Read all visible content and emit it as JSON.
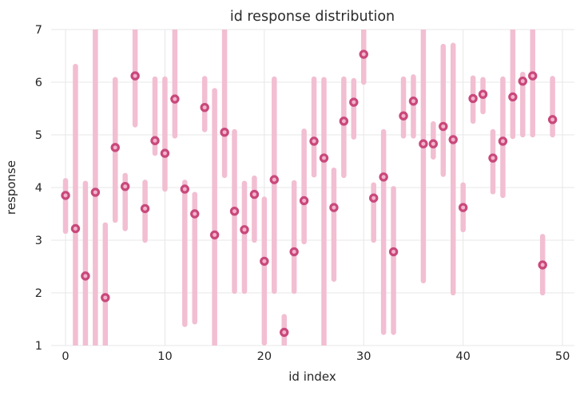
{
  "style": {
    "background": "#ffffff",
    "grid_color": "#e7e7ea",
    "text_color": "#262626",
    "title_color": "#2b2b2b",
    "marker_edge_color": "#c9487b",
    "marker_face_color": "#f2b3ca",
    "error_bar_color": "#f2bed2"
  },
  "chart_data": {
    "type": "scatter",
    "title": "id response distribution",
    "xlabel": "id index",
    "ylabel": "response",
    "xlim": [
      -1.45,
      51.2
    ],
    "ylim": [
      1,
      7
    ],
    "xticks": [
      0,
      10,
      20,
      30,
      40,
      50
    ],
    "yticks": [
      1,
      2,
      3,
      4,
      5,
      6,
      7
    ],
    "grid": true,
    "legend": false,
    "series": [
      {
        "name": "response",
        "marker": "ring",
        "has_error_bars": true,
        "x": [
          0,
          1,
          2,
          3,
          4,
          5,
          6,
          7,
          8,
          9,
          10,
          11,
          12,
          13,
          14,
          15,
          16,
          17,
          18,
          19,
          20,
          21,
          22,
          23,
          24,
          25,
          26,
          27,
          28,
          29,
          30,
          31,
          32,
          33,
          34,
          35,
          36,
          37,
          38,
          39,
          40,
          41,
          42,
          43,
          44,
          45,
          46,
          47,
          48,
          49
        ],
        "y": [
          3.85,
          3.22,
          2.32,
          3.91,
          1.91,
          4.76,
          4.02,
          6.12,
          3.6,
          4.89,
          4.65,
          5.68,
          3.97,
          3.5,
          5.52,
          3.1,
          5.05,
          3.55,
          3.2,
          3.87,
          2.6,
          4.15,
          1.25,
          2.78,
          3.75,
          4.88,
          4.56,
          3.62,
          5.26,
          5.62,
          6.53,
          3.8,
          4.2,
          2.78,
          5.36,
          5.64,
          4.83,
          4.83,
          5.16,
          4.91,
          3.62,
          5.69,
          5.77,
          4.56,
          4.88,
          5.72,
          6.02,
          6.12,
          2.53,
          5.29
        ],
        "err_low": [
          3.17,
          1.0,
          1.0,
          1.0,
          1.0,
          3.38,
          3.22,
          5.19,
          3.0,
          4.65,
          3.97,
          4.98,
          1.4,
          1.45,
          5.1,
          1.0,
          4.23,
          2.03,
          2.03,
          3.0,
          1.05,
          2.03,
          1.0,
          2.03,
          2.97,
          4.24,
          1.0,
          2.26,
          4.23,
          4.96,
          6.0,
          3.0,
          1.25,
          1.25,
          4.98,
          4.98,
          2.23,
          4.58,
          4.25,
          2.0,
          3.2,
          5.26,
          5.44,
          3.92,
          3.85,
          4.97,
          5.0,
          5.0,
          2.0,
          5.0
        ],
        "err_high": [
          4.13,
          6.3,
          4.08,
          7.0,
          3.29,
          6.05,
          4.23,
          7.0,
          4.1,
          6.06,
          6.06,
          7.0,
          4.1,
          3.87,
          6.07,
          5.84,
          7.0,
          5.06,
          4.08,
          4.18,
          3.78,
          6.06,
          1.55,
          4.09,
          5.07,
          6.06,
          6.05,
          4.33,
          6.06,
          6.03,
          7.0,
          4.05,
          5.06,
          3.98,
          6.06,
          6.1,
          7.0,
          5.21,
          6.68,
          6.7,
          4.05,
          6.08,
          6.05,
          5.06,
          6.06,
          7.0,
          6.15,
          7.0,
          3.07,
          6.07
        ]
      }
    ]
  }
}
